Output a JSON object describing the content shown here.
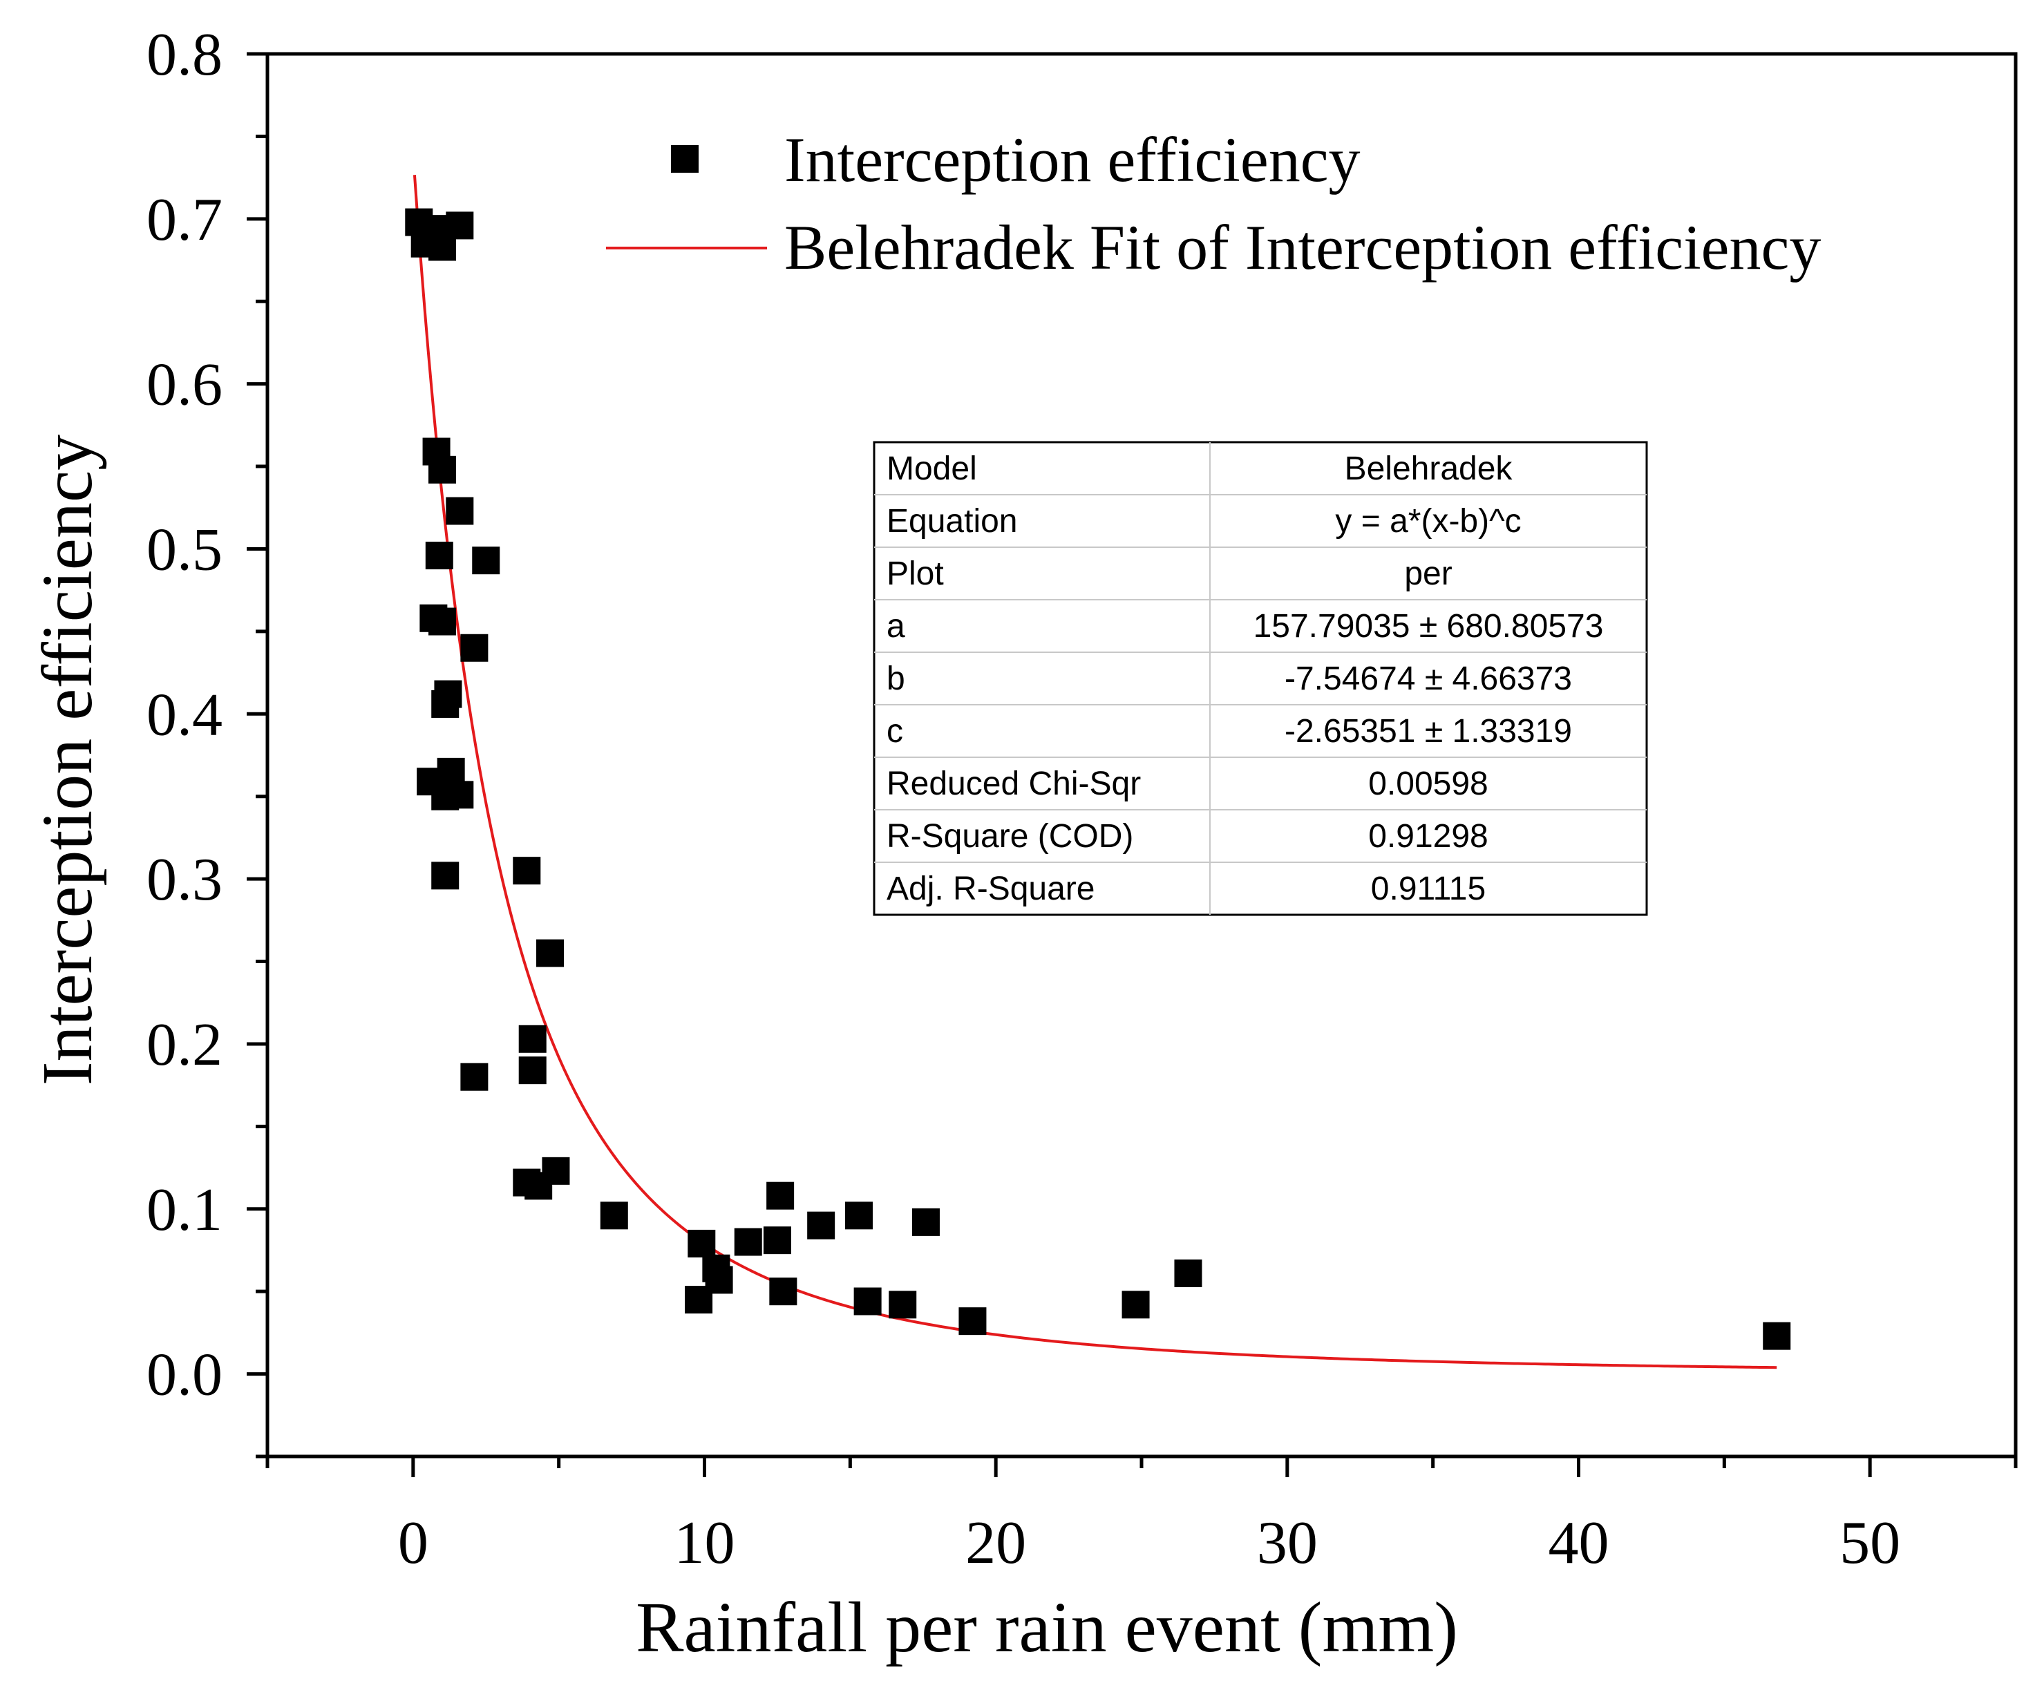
{
  "chart_data": {
    "type": "scatter",
    "title": "",
    "xlabel": "Rainfall per rain event (mm)",
    "ylabel": "Interception efficiency",
    "xlim": [
      -5,
      55
    ],
    "ylim": [
      -0.05,
      0.8
    ],
    "x_ticks": [
      0,
      10,
      20,
      30,
      40,
      50
    ],
    "y_ticks": [
      0.0,
      0.1,
      0.2,
      0.3,
      0.4,
      0.5,
      0.6,
      0.7,
      0.8
    ],
    "x_tick_labels": [
      "0",
      "10",
      "20",
      "30",
      "40",
      "50"
    ],
    "y_tick_labels": [
      "0.0",
      "0.1",
      "0.2",
      "0.3",
      "0.4",
      "0.5",
      "0.6",
      "0.7",
      "0.8"
    ],
    "grid": false,
    "legend_position": "top-right",
    "series": [
      {
        "name": "Interception efficiency",
        "kind": "scatter",
        "marker": "square",
        "color": "#000000",
        "points": [
          [
            0.2,
            0.698
          ],
          [
            0.4,
            0.685
          ],
          [
            0.7,
            0.694
          ],
          [
            1.0,
            0.683
          ],
          [
            1.6,
            0.696
          ],
          [
            0.8,
            0.559
          ],
          [
            1.0,
            0.548
          ],
          [
            1.6,
            0.523
          ],
          [
            0.9,
            0.496
          ],
          [
            2.5,
            0.493
          ],
          [
            0.7,
            0.458
          ],
          [
            1.0,
            0.456
          ],
          [
            2.1,
            0.44
          ],
          [
            1.2,
            0.412
          ],
          [
            1.1,
            0.406
          ],
          [
            0.6,
            0.359
          ],
          [
            1.3,
            0.365
          ],
          [
            1.1,
            0.35
          ],
          [
            1.6,
            0.351
          ],
          [
            1.1,
            0.302
          ],
          [
            3.9,
            0.305
          ],
          [
            4.7,
            0.255
          ],
          [
            4.1,
            0.203
          ],
          [
            4.1,
            0.184
          ],
          [
            2.1,
            0.18
          ],
          [
            3.9,
            0.116
          ],
          [
            4.3,
            0.114
          ],
          [
            4.9,
            0.123
          ],
          [
            6.9,
            0.096
          ],
          [
            9.9,
            0.079
          ],
          [
            10.4,
            0.064
          ],
          [
            10.5,
            0.057
          ],
          [
            9.8,
            0.045
          ],
          [
            11.5,
            0.08
          ],
          [
            12.5,
            0.081
          ],
          [
            12.6,
            0.108
          ],
          [
            12.7,
            0.05
          ],
          [
            14.0,
            0.09
          ],
          [
            15.3,
            0.096
          ],
          [
            15.6,
            0.044
          ],
          [
            16.8,
            0.042
          ],
          [
            17.6,
            0.092
          ],
          [
            19.2,
            0.032
          ],
          [
            24.8,
            0.042
          ],
          [
            26.6,
            0.061
          ],
          [
            46.8,
            0.023
          ]
        ]
      },
      {
        "name": "Belehradek Fit of Interception efficiency",
        "kind": "line",
        "color": "#e41a1c",
        "model": {
          "a": 157.79035,
          "b": -7.54674,
          "c": -2.65351
        },
        "x_range": [
          0.05,
          46.8
        ]
      }
    ],
    "fit_table": {
      "rows": [
        {
          "label": "Model",
          "value": "Belehradek"
        },
        {
          "label": "Equation",
          "value": "y = a*(x-b)^c"
        },
        {
          "label": "Plot",
          "value": "per"
        },
        {
          "label": "a",
          "value": "157.79035 ± 680.80573"
        },
        {
          "label": "b",
          "value": "-7.54674 ± 4.66373"
        },
        {
          "label": "c",
          "value": "-2.65351 ± 1.33319"
        },
        {
          "label": "Reduced Chi-Sqr",
          "value": "0.00598"
        },
        {
          "label": "R-Square (COD)",
          "value": "0.91298"
        },
        {
          "label": "Adj. R-Square",
          "value": "0.91115"
        }
      ]
    }
  }
}
